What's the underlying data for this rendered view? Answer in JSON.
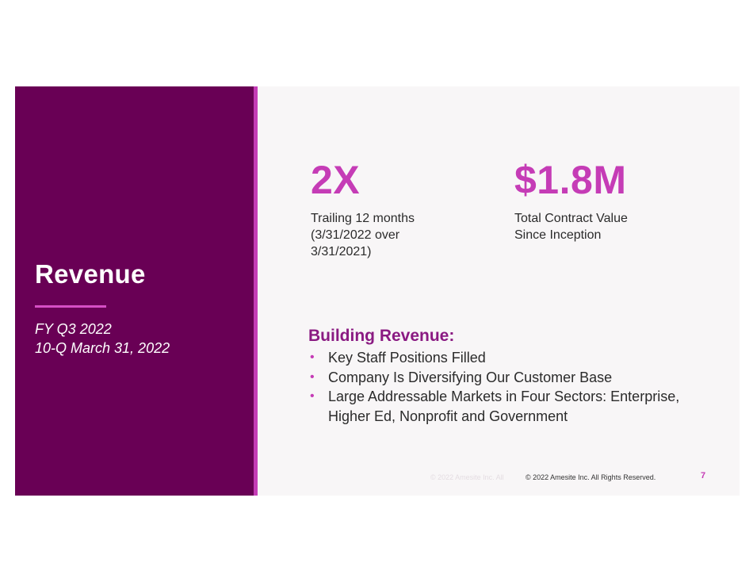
{
  "colors": {
    "panel": "#690055",
    "accent": "#c53cb6",
    "heading": "#8a1a82",
    "slide_background": "#f8f6f7"
  },
  "left_panel": {
    "title": "Revenue",
    "subtitle_lines": [
      "FY Q3 2022",
      "10-Q March 31, 2022"
    ]
  },
  "metrics": [
    {
      "value": "2X",
      "description_lines": [
        "Trailing 12 months",
        "(3/31/2022 over",
        "3/31/2021)"
      ]
    },
    {
      "value": "$1.8M",
      "description_lines": [
        "Total Contract Value",
        "Since Inception"
      ]
    }
  ],
  "building_revenue": {
    "title": "Building Revenue:",
    "bullet_marker": "•",
    "bullets": [
      "Key Staff Positions Filled",
      "Company Is Diversifying Our Customer Base",
      "Large Addressable Markets in Four Sectors: Enterprise, Higher Ed, Nonprofit and Government"
    ]
  },
  "footer": {
    "ghost_text": "© 2022 Amesite Inc. All",
    "copyright": "© 2022 Amesite Inc. All Rights Reserved.",
    "page_number": "7"
  }
}
